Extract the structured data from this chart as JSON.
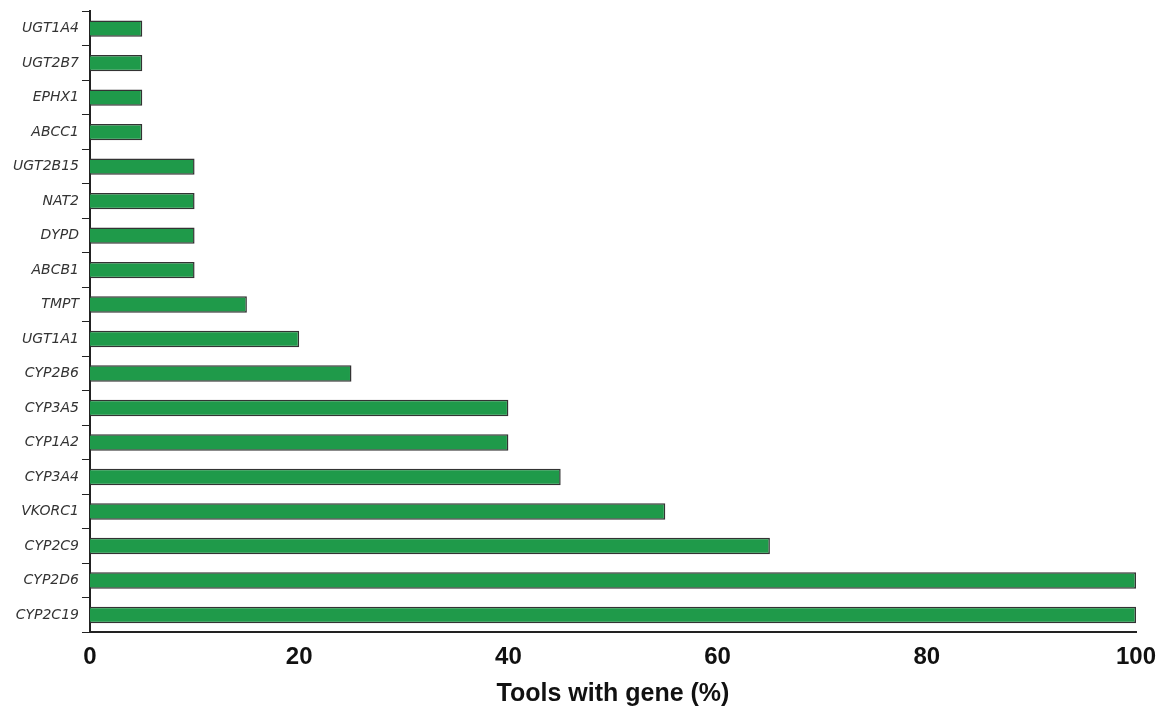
{
  "chart_data": {
    "type": "bar",
    "orientation": "horizontal",
    "xlabel": "Tools with gene (%)",
    "categories": [
      "UGT1A4",
      "UGT2B7",
      "EPHX1",
      "ABCC1",
      "UGT2B15",
      "NAT2",
      "DYPD",
      "ABCB1",
      "TMPT",
      "UGT1A1",
      "CYP2B6",
      "CYP3A5",
      "CYP1A2",
      "CYP3A4",
      "VKORC1",
      "CYP2C9",
      "CYP2D6",
      "CYP2C19"
    ],
    "values": [
      5,
      5,
      5,
      5,
      10,
      10,
      10,
      10,
      15,
      20,
      25,
      40,
      40,
      45,
      55,
      65,
      100,
      100
    ],
    "color": "#1f9a4a",
    "xlim": [
      0,
      100
    ],
    "xticks": [
      0,
      20,
      40,
      60,
      80,
      100
    ],
    "grid": false,
    "legend": false
  }
}
